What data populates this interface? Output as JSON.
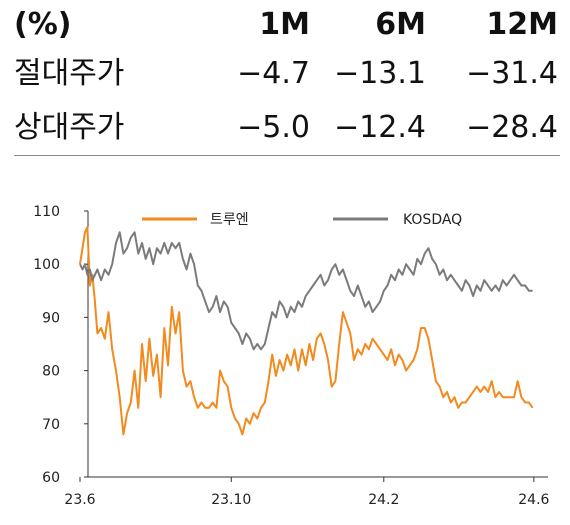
{
  "table": {
    "header": [
      "(%)",
      "1M",
      "6M",
      "12M"
    ],
    "rows": [
      {
        "label": "절대주가",
        "values": [
          "−4.7",
          "−13.1",
          "−31.4"
        ]
      },
      {
        "label": "상대주가",
        "values": [
          "−5.0",
          "−12.4",
          "−28.4"
        ]
      }
    ]
  },
  "chart_data": {
    "type": "line",
    "title": "",
    "xlabel": "",
    "ylabel": "",
    "ylim": [
      60,
      110
    ],
    "yticks": [
      "110",
      "100",
      "90",
      "80",
      "70",
      "60"
    ],
    "xlim": [
      "2023-06-01",
      "2024-06-10"
    ],
    "xticks": [
      {
        "label": "23.6",
        "date": "2023-06-01"
      },
      {
        "label": "23.10",
        "date": "2023-10-01"
      },
      {
        "label": "24.2",
        "date": "2024-02-01"
      },
      {
        "label": "24.6",
        "date": "2024-06-01"
      }
    ],
    "grid": false,
    "legend": "top",
    "series": [
      {
        "name": "트루엔",
        "color": "#f28a1e",
        "points": [
          [
            "2023-06-01",
            100
          ],
          [
            "2023-06-03",
            103
          ],
          [
            "2023-06-05",
            106
          ],
          [
            "2023-06-07",
            107
          ],
          [
            "2023-06-09",
            96
          ],
          [
            "2023-06-11",
            98
          ],
          [
            "2023-06-13",
            93
          ],
          [
            "2023-06-15",
            87
          ],
          [
            "2023-06-18",
            88
          ],
          [
            "2023-06-21",
            86
          ],
          [
            "2023-06-24",
            91
          ],
          [
            "2023-06-27",
            84
          ],
          [
            "2023-06-30",
            80
          ],
          [
            "2023-07-03",
            75
          ],
          [
            "2023-07-06",
            68
          ],
          [
            "2023-07-09",
            72
          ],
          [
            "2023-07-12",
            74
          ],
          [
            "2023-07-15",
            80
          ],
          [
            "2023-07-18",
            73
          ],
          [
            "2023-07-21",
            85
          ],
          [
            "2023-07-24",
            78
          ],
          [
            "2023-07-27",
            86
          ],
          [
            "2023-07-30",
            79
          ],
          [
            "2023-08-02",
            83
          ],
          [
            "2023-08-05",
            75
          ],
          [
            "2023-08-08",
            88
          ],
          [
            "2023-08-11",
            81
          ],
          [
            "2023-08-14",
            92
          ],
          [
            "2023-08-17",
            87
          ],
          [
            "2023-08-20",
            91
          ],
          [
            "2023-08-23",
            80
          ],
          [
            "2023-08-26",
            77
          ],
          [
            "2023-08-29",
            78
          ],
          [
            "2023-09-01",
            75
          ],
          [
            "2023-09-04",
            73
          ],
          [
            "2023-09-07",
            74
          ],
          [
            "2023-09-10",
            73
          ],
          [
            "2023-09-13",
            73
          ],
          [
            "2023-09-16",
            74
          ],
          [
            "2023-09-19",
            73
          ],
          [
            "2023-09-22",
            80
          ],
          [
            "2023-09-25",
            78
          ],
          [
            "2023-09-28",
            77
          ],
          [
            "2023-10-01",
            73
          ],
          [
            "2023-10-04",
            71
          ],
          [
            "2023-10-07",
            70
          ],
          [
            "2023-10-10",
            68
          ],
          [
            "2023-10-13",
            71
          ],
          [
            "2023-10-16",
            70
          ],
          [
            "2023-10-19",
            72
          ],
          [
            "2023-10-22",
            71
          ],
          [
            "2023-10-25",
            73
          ],
          [
            "2023-10-28",
            74
          ],
          [
            "2023-10-31",
            78
          ],
          [
            "2023-11-03",
            83
          ],
          [
            "2023-11-06",
            79
          ],
          [
            "2023-11-09",
            82
          ],
          [
            "2023-11-12",
            80
          ],
          [
            "2023-11-15",
            83
          ],
          [
            "2023-11-18",
            81
          ],
          [
            "2023-11-21",
            84
          ],
          [
            "2023-11-24",
            80
          ],
          [
            "2023-11-27",
            84
          ],
          [
            "2023-11-30",
            81
          ],
          [
            "2023-12-03",
            85
          ],
          [
            "2023-12-06",
            82
          ],
          [
            "2023-12-09",
            86
          ],
          [
            "2023-12-12",
            87
          ],
          [
            "2023-12-15",
            85
          ],
          [
            "2023-12-18",
            82
          ],
          [
            "2023-12-21",
            77
          ],
          [
            "2023-12-24",
            78
          ],
          [
            "2023-12-27",
            85
          ],
          [
            "2023-12-30",
            91
          ],
          [
            "2024-01-02",
            89
          ],
          [
            "2024-01-05",
            87
          ],
          [
            "2024-01-08",
            82
          ],
          [
            "2024-01-11",
            84
          ],
          [
            "2024-01-14",
            83
          ],
          [
            "2024-01-17",
            85
          ],
          [
            "2024-01-20",
            84
          ],
          [
            "2024-01-23",
            86
          ],
          [
            "2024-01-26",
            85
          ],
          [
            "2024-01-29",
            84
          ],
          [
            "2024-02-01",
            83
          ],
          [
            "2024-02-04",
            82
          ],
          [
            "2024-02-07",
            84
          ],
          [
            "2024-02-10",
            81
          ],
          [
            "2024-02-13",
            83
          ],
          [
            "2024-02-16",
            82
          ],
          [
            "2024-02-19",
            80
          ],
          [
            "2024-02-22",
            81
          ],
          [
            "2024-02-25",
            82
          ],
          [
            "2024-02-28",
            84
          ],
          [
            "2024-03-02",
            88
          ],
          [
            "2024-03-05",
            88
          ],
          [
            "2024-03-08",
            86
          ],
          [
            "2024-03-11",
            82
          ],
          [
            "2024-03-14",
            78
          ],
          [
            "2024-03-17",
            77
          ],
          [
            "2024-03-20",
            75
          ],
          [
            "2024-03-23",
            76
          ],
          [
            "2024-03-26",
            74
          ],
          [
            "2024-03-29",
            75
          ],
          [
            "2024-04-01",
            73
          ],
          [
            "2024-04-04",
            74
          ],
          [
            "2024-04-07",
            74
          ],
          [
            "2024-04-10",
            75
          ],
          [
            "2024-04-13",
            76
          ],
          [
            "2024-04-16",
            77
          ],
          [
            "2024-04-19",
            76
          ],
          [
            "2024-04-22",
            77
          ],
          [
            "2024-04-25",
            76
          ],
          [
            "2024-04-28",
            78
          ],
          [
            "2024-05-01",
            75
          ],
          [
            "2024-05-04",
            76
          ],
          [
            "2024-05-07",
            75
          ],
          [
            "2024-05-10",
            75
          ],
          [
            "2024-05-13",
            75
          ],
          [
            "2024-05-16",
            75
          ],
          [
            "2024-05-19",
            78
          ],
          [
            "2024-05-22",
            75
          ],
          [
            "2024-05-25",
            74
          ],
          [
            "2024-05-28",
            74
          ],
          [
            "2024-05-31",
            73
          ]
        ]
      },
      {
        "name": "KOSDAQ",
        "color": "#7b7b7b",
        "points": [
          [
            "2023-06-01",
            100
          ],
          [
            "2023-06-03",
            99
          ],
          [
            "2023-06-05",
            100
          ],
          [
            "2023-06-07",
            98
          ],
          [
            "2023-06-09",
            99
          ],
          [
            "2023-06-11",
            97
          ],
          [
            "2023-06-13",
            98
          ],
          [
            "2023-06-15",
            99
          ],
          [
            "2023-06-18",
            97
          ],
          [
            "2023-06-21",
            99
          ],
          [
            "2023-06-24",
            98
          ],
          [
            "2023-06-27",
            100
          ],
          [
            "2023-06-30",
            104
          ],
          [
            "2023-07-03",
            106
          ],
          [
            "2023-07-06",
            102
          ],
          [
            "2023-07-09",
            103
          ],
          [
            "2023-07-12",
            105
          ],
          [
            "2023-07-15",
            106
          ],
          [
            "2023-07-18",
            102
          ],
          [
            "2023-07-21",
            104
          ],
          [
            "2023-07-24",
            101
          ],
          [
            "2023-07-27",
            103
          ],
          [
            "2023-07-30",
            100
          ],
          [
            "2023-08-02",
            103
          ],
          [
            "2023-08-05",
            102
          ],
          [
            "2023-08-08",
            104
          ],
          [
            "2023-08-11",
            102
          ],
          [
            "2023-08-14",
            104
          ],
          [
            "2023-08-17",
            103
          ],
          [
            "2023-08-20",
            104
          ],
          [
            "2023-08-23",
            101
          ],
          [
            "2023-08-26",
            99
          ],
          [
            "2023-08-29",
            102
          ],
          [
            "2023-09-01",
            100
          ],
          [
            "2023-09-04",
            96
          ],
          [
            "2023-09-07",
            95
          ],
          [
            "2023-09-10",
            93
          ],
          [
            "2023-09-13",
            91
          ],
          [
            "2023-09-16",
            92
          ],
          [
            "2023-09-19",
            94
          ],
          [
            "2023-09-22",
            91
          ],
          [
            "2023-09-25",
            93
          ],
          [
            "2023-09-28",
            92
          ],
          [
            "2023-10-01",
            89
          ],
          [
            "2023-10-04",
            88
          ],
          [
            "2023-10-07",
            87
          ],
          [
            "2023-10-10",
            85
          ],
          [
            "2023-10-13",
            87
          ],
          [
            "2023-10-16",
            86
          ],
          [
            "2023-10-19",
            84
          ],
          [
            "2023-10-22",
            85
          ],
          [
            "2023-10-25",
            84
          ],
          [
            "2023-10-28",
            85
          ],
          [
            "2023-10-31",
            88
          ],
          [
            "2023-11-03",
            91
          ],
          [
            "2023-11-06",
            90
          ],
          [
            "2023-11-09",
            93
          ],
          [
            "2023-11-12",
            92
          ],
          [
            "2023-11-15",
            90
          ],
          [
            "2023-11-18",
            92
          ],
          [
            "2023-11-21",
            91
          ],
          [
            "2023-11-24",
            93
          ],
          [
            "2023-11-27",
            92
          ],
          [
            "2023-11-30",
            94
          ],
          [
            "2023-12-03",
            95
          ],
          [
            "2023-12-06",
            96
          ],
          [
            "2023-12-09",
            97
          ],
          [
            "2023-12-12",
            98
          ],
          [
            "2023-12-15",
            96
          ],
          [
            "2023-12-18",
            97
          ],
          [
            "2023-12-21",
            99
          ],
          [
            "2023-12-24",
            100
          ],
          [
            "2023-12-27",
            98
          ],
          [
            "2023-12-30",
            99
          ],
          [
            "2024-01-02",
            97
          ],
          [
            "2024-01-05",
            95
          ],
          [
            "2024-01-08",
            94
          ],
          [
            "2024-01-11",
            96
          ],
          [
            "2024-01-14",
            94
          ],
          [
            "2024-01-17",
            92
          ],
          [
            "2024-01-20",
            93
          ],
          [
            "2024-01-23",
            91
          ],
          [
            "2024-01-26",
            92
          ],
          [
            "2024-01-29",
            93
          ],
          [
            "2024-02-01",
            95
          ],
          [
            "2024-02-04",
            96
          ],
          [
            "2024-02-07",
            98
          ],
          [
            "2024-02-10",
            97
          ],
          [
            "2024-02-13",
            99
          ],
          [
            "2024-02-16",
            98
          ],
          [
            "2024-02-19",
            100
          ],
          [
            "2024-02-22",
            99
          ],
          [
            "2024-02-25",
            98
          ],
          [
            "2024-02-28",
            101
          ],
          [
            "2024-03-02",
            100
          ],
          [
            "2024-03-05",
            102
          ],
          [
            "2024-03-08",
            103
          ],
          [
            "2024-03-11",
            101
          ],
          [
            "2024-03-14",
            100
          ],
          [
            "2024-03-17",
            98
          ],
          [
            "2024-03-20",
            99
          ],
          [
            "2024-03-23",
            97
          ],
          [
            "2024-03-26",
            98
          ],
          [
            "2024-03-29",
            97
          ],
          [
            "2024-04-01",
            96
          ],
          [
            "2024-04-04",
            95
          ],
          [
            "2024-04-07",
            97
          ],
          [
            "2024-04-10",
            96
          ],
          [
            "2024-04-13",
            94
          ],
          [
            "2024-04-16",
            96
          ],
          [
            "2024-04-19",
            95
          ],
          [
            "2024-04-22",
            97
          ],
          [
            "2024-04-25",
            96
          ],
          [
            "2024-04-28",
            95
          ],
          [
            "2024-05-01",
            96
          ],
          [
            "2024-05-04",
            95
          ],
          [
            "2024-05-07",
            97
          ],
          [
            "2024-05-10",
            96
          ],
          [
            "2024-05-13",
            97
          ],
          [
            "2024-05-16",
            98
          ],
          [
            "2024-05-19",
            97
          ],
          [
            "2024-05-22",
            96
          ],
          [
            "2024-05-25",
            96
          ],
          [
            "2024-05-28",
            95
          ],
          [
            "2024-05-31",
            95
          ]
        ]
      }
    ]
  }
}
